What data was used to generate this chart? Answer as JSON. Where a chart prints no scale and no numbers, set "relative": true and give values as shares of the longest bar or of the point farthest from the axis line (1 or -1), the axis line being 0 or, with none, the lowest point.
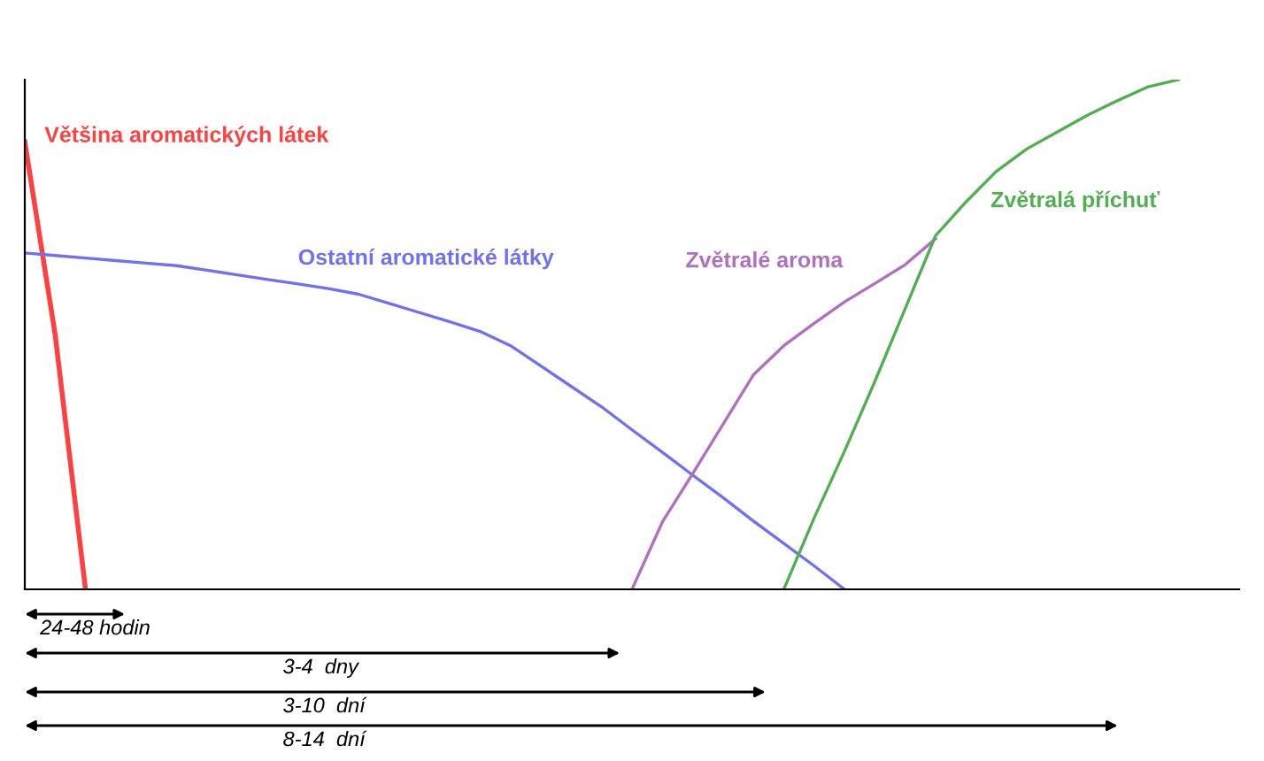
{
  "chart_data": {
    "type": "line",
    "relative": true,
    "legend": false,
    "marker": "none",
    "line_style": "solid",
    "categories": [
      null,
      null,
      null,
      null,
      null,
      null,
      null,
      null,
      null,
      null,
      null,
      null,
      null,
      null,
      null,
      null,
      null,
      null,
      null,
      null,
      null,
      null,
      null,
      null,
      null,
      null,
      null,
      null,
      null,
      null,
      null,
      null,
      null,
      null,
      null,
      null,
      null,
      null,
      null
    ],
    "series": [
      {
        "name": "Většina aromatických látek",
        "color": "#ff4040",
        "values": [
          0.878,
          0.5,
          0,
          null,
          null,
          null,
          null,
          null,
          null,
          null,
          null,
          null,
          null,
          null,
          null,
          null,
          null,
          null,
          null,
          null,
          null,
          null,
          null,
          null,
          null,
          null,
          null,
          null,
          null,
          null,
          null,
          null,
          null,
          null,
          null,
          null,
          null,
          null,
          null
        ]
      },
      {
        "name": "Ostatní aromatické látky",
        "color": "#7070f0",
        "values": [
          0.66,
          0.655,
          0.65,
          0.645,
          0.64,
          0.635,
          0.626,
          0.617,
          0.608,
          0.599,
          0.59,
          0.579,
          0.561,
          0.543,
          0.525,
          0.506,
          0.478,
          0.438,
          0.398,
          0.358,
          0.313,
          0.269,
          0.224,
          0.18,
          0.134,
          0.09,
          0.046,
          0,
          null,
          null,
          null,
          null,
          null,
          null,
          null,
          null,
          null,
          null,
          null
        ]
      },
      {
        "name": "Zvětralé aroma",
        "color": "#b070c0",
        "values": [
          null,
          null,
          null,
          null,
          null,
          null,
          null,
          null,
          null,
          null,
          null,
          null,
          null,
          null,
          null,
          null,
          null,
          null,
          null,
          null,
          0,
          0.132,
          0.227,
          0.324,
          0.421,
          0.478,
          0.522,
          0.564,
          0.6,
          0.637,
          0.688,
          null,
          null,
          null,
          null,
          null,
          null,
          null,
          null
        ]
      },
      {
        "name": "Zvětralá příchuť",
        "color": "#50b050",
        "values": [
          null,
          null,
          null,
          null,
          null,
          null,
          null,
          null,
          null,
          null,
          null,
          null,
          null,
          null,
          null,
          null,
          null,
          null,
          null,
          null,
          null,
          null,
          null,
          null,
          null,
          0,
          0.14,
          0.271,
          0.408,
          0.551,
          0.694,
          0.76,
          0.82,
          0.864,
          0.897,
          0.93,
          0.959,
          0.986,
          1.0
        ]
      }
    ],
    "annotations": [
      "24-48 hodin",
      "3-4  dny",
      "3-10  dní",
      "8-14  dní"
    ]
  }
}
